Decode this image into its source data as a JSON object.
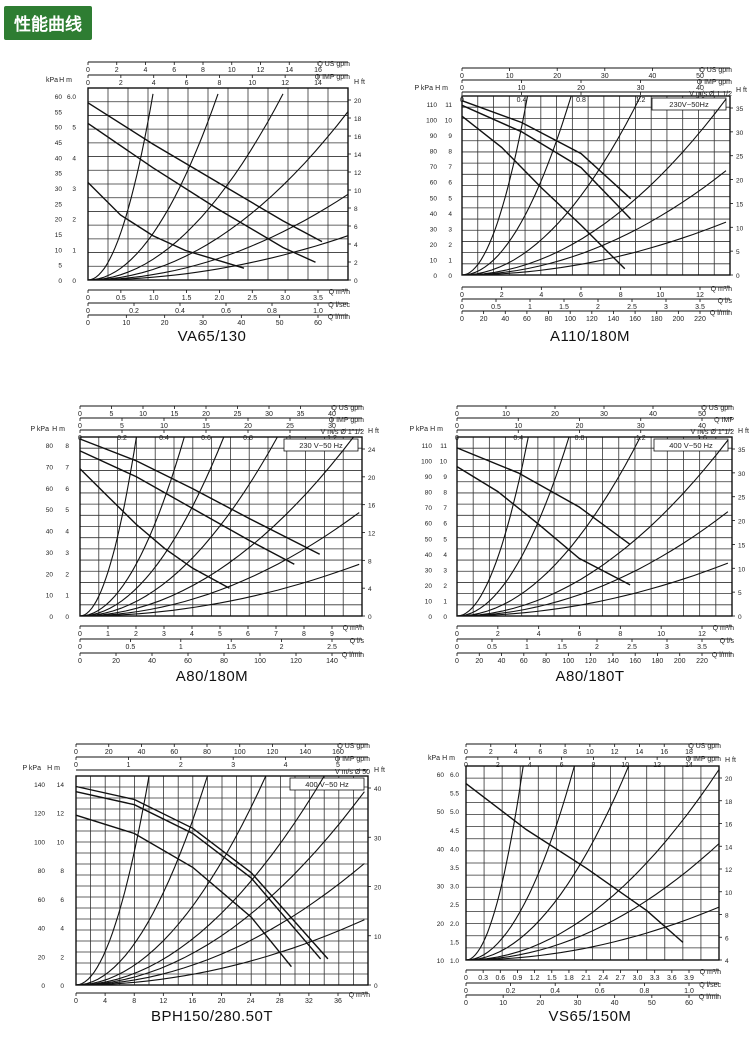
{
  "header": {
    "title": "性能曲线"
  },
  "chart_data": [
    {
      "type": "line",
      "title": "VA65/130",
      "top_axes": [
        {
          "label": "Q US gpm",
          "ticks": [
            "0",
            "2",
            "4",
            "6",
            "8",
            "10",
            "12",
            "14",
            "16"
          ]
        },
        {
          "label": "Q IMP gpm",
          "ticks": [
            "0",
            "2",
            "4",
            "6",
            "8",
            "10",
            "12",
            "14"
          ]
        }
      ],
      "left_axes": [
        {
          "label": "kPa",
          "ticks": [
            "0",
            "5",
            "10",
            "15",
            "20",
            "25",
            "30",
            "35",
            "40",
            "45",
            "50",
            "55",
            "60"
          ]
        },
        {
          "label": "H m",
          "ticks": [
            "0",
            "1",
            "2",
            "3",
            "4",
            "5",
            "6.0"
          ]
        }
      ],
      "right_axes": [
        {
          "label": "H ft",
          "ticks": [
            "0",
            "2",
            "4",
            "6",
            "8",
            "10",
            "12",
            "14",
            "16",
            "18",
            "20"
          ]
        }
      ],
      "bottom_axes": [
        {
          "label": "Q m³/h",
          "ticks": [
            "0",
            "0.5",
            "1.0",
            "1.5",
            "2.0",
            "2.5",
            "3.0",
            "3.5"
          ]
        },
        {
          "label": "Q l/sec",
          "ticks": [
            "0",
            "0.2",
            "0.4",
            "0.6",
            "0.8",
            "1.0"
          ]
        },
        {
          "label": "Q l/min",
          "ticks": [
            "0",
            "10",
            "20",
            "30",
            "40",
            "50",
            "60"
          ]
        }
      ],
      "x_range": [
        0,
        4
      ],
      "y_range": [
        0,
        6.5
      ],
      "pump_curves": [
        {
          "x": [
            0,
            1,
            2,
            3,
            3.6
          ],
          "y": [
            6.0,
            4.6,
            3.3,
            2.0,
            1.3
          ]
        },
        {
          "x": [
            0,
            1,
            2,
            3,
            3.5
          ],
          "y": [
            5.3,
            3.8,
            2.4,
            1.1,
            0.6
          ]
        },
        {
          "x": [
            0,
            0.5,
            1,
            1.5,
            2.4
          ],
          "y": [
            3.3,
            2.2,
            1.5,
            1.0,
            0.4
          ]
        }
      ],
      "system_curve_ends": [
        [
          1,
          6.3
        ],
        [
          2,
          6.3
        ],
        [
          3,
          6.3
        ],
        [
          4,
          5.7
        ],
        [
          4,
          2.9
        ],
        [
          4,
          1.5
        ]
      ]
    },
    {
      "type": "line",
      "title": "A110/180M",
      "top_axes": [
        {
          "label": "Q US gpm",
          "ticks": [
            "0",
            "10",
            "20",
            "30",
            "40",
            "50"
          ]
        },
        {
          "label": "Q IMP gpm",
          "ticks": [
            "0",
            "10",
            "20",
            "30",
            "40"
          ]
        },
        {
          "label": "V m/s Ø 1 1/2",
          "ticks": [
            "0",
            "0.4",
            "0.8",
            "1.2",
            "1.6"
          ]
        }
      ],
      "left_axes": [
        {
          "label": "P kPa",
          "ticks": [
            "0",
            "10",
            "20",
            "30",
            "40",
            "50",
            "60",
            "70",
            "80",
            "90",
            "100",
            "110"
          ]
        },
        {
          "label": "H m",
          "ticks": [
            "0",
            "1",
            "2",
            "3",
            "4",
            "5",
            "6",
            "7",
            "8",
            "9",
            "10",
            "11"
          ]
        }
      ],
      "right_axes": [
        {
          "label": "H ft",
          "ticks": [
            "0",
            "5",
            "10",
            "15",
            "20",
            "25",
            "30",
            "35"
          ]
        }
      ],
      "bottom_axes": [
        {
          "label": "Q m³/h",
          "ticks": [
            "0",
            "2",
            "4",
            "6",
            "8",
            "10",
            "12"
          ]
        },
        {
          "label": "Q l/s",
          "ticks": [
            "0",
            "0.5",
            "1",
            "1.5",
            "2",
            "2.5",
            "3",
            "3.5"
          ]
        },
        {
          "label": "Q l/min",
          "ticks": [
            "0",
            "20",
            "40",
            "60",
            "80",
            "100",
            "120",
            "140",
            "160",
            "180",
            "200",
            "220"
          ]
        }
      ],
      "x_range": [
        0,
        13.5
      ],
      "y_range": [
        0,
        11.5
      ],
      "label": "230V~50Hz",
      "pump_curves": [
        {
          "x": [
            0,
            3,
            6,
            8.5
          ],
          "y": [
            11.2,
            9.8,
            7.8,
            4.9
          ]
        },
        {
          "x": [
            0,
            3,
            6,
            8.5
          ],
          "y": [
            10.9,
            9.2,
            6.9,
            3.6
          ]
        },
        {
          "x": [
            0,
            2,
            4,
            6,
            8.2
          ],
          "y": [
            10.2,
            8.2,
            5.6,
            3.2,
            0.4
          ]
        }
      ],
      "system_curve_ends": [
        [
          3.3,
          11.5
        ],
        [
          5.5,
          11.5
        ],
        [
          9,
          11.5
        ],
        [
          13.3,
          11.3
        ],
        [
          13.3,
          6.7
        ],
        [
          13.3,
          3.4
        ]
      ]
    },
    {
      "type": "line",
      "title": "A80/180M",
      "top_axes": [
        {
          "label": "Q US gpm",
          "ticks": [
            "0",
            "5",
            "10",
            "15",
            "20",
            "25",
            "30",
            "35",
            "40"
          ]
        },
        {
          "label": "Q IMP gpm",
          "ticks": [
            "0",
            "5",
            "10",
            "15",
            "20",
            "25",
            "30"
          ]
        },
        {
          "label": "V m/s Ø 1\"1/2",
          "ticks": [
            "0",
            "0.2",
            "0.4",
            "0.6",
            "0.8",
            "1",
            "1.2"
          ]
        }
      ],
      "left_axes": [
        {
          "label": "P kPa",
          "ticks": [
            "0",
            "10",
            "20",
            "30",
            "40",
            "50",
            "60",
            "70",
            "80"
          ]
        },
        {
          "label": "H m",
          "ticks": [
            "0",
            "1",
            "2",
            "3",
            "4",
            "5",
            "6",
            "7",
            "8"
          ]
        }
      ],
      "right_axes": [
        {
          "label": "H ft",
          "ticks": [
            "0",
            "4",
            "8",
            "12",
            "16",
            "20",
            "24"
          ]
        }
      ],
      "bottom_axes": [
        {
          "label": "Q m³/h",
          "ticks": [
            "0",
            "1",
            "2",
            "3",
            "4",
            "5",
            "6",
            "7",
            "8",
            "9"
          ]
        },
        {
          "label": "Q l/s",
          "ticks": [
            "0",
            "0.5",
            "1",
            "1.5",
            "2",
            "2.5"
          ]
        },
        {
          "label": "Q l/min",
          "ticks": [
            "0",
            "20",
            "40",
            "60",
            "80",
            "100",
            "120",
            "140"
          ]
        }
      ],
      "x_range": [
        0,
        10
      ],
      "y_range": [
        0,
        9
      ],
      "label": "230 V~50 Hz",
      "pump_curves": [
        {
          "x": [
            0,
            2,
            4,
            6,
            8.5
          ],
          "y": [
            8.9,
            7.8,
            6.4,
            4.9,
            3.1
          ]
        },
        {
          "x": [
            0,
            2,
            4,
            6,
            7.6
          ],
          "y": [
            8.3,
            7.0,
            5.4,
            3.8,
            2.6
          ]
        },
        {
          "x": [
            0,
            1,
            2,
            3,
            4,
            5.3
          ],
          "y": [
            7.4,
            6.0,
            4.6,
            3.4,
            2.4,
            1.4
          ]
        }
      ],
      "system_curve_ends": [
        [
          2,
          9
        ],
        [
          3.7,
          9
        ],
        [
          5.1,
          9
        ],
        [
          7,
          9
        ],
        [
          9.7,
          9
        ],
        [
          9.9,
          5.2
        ],
        [
          9.9,
          2.6
        ]
      ]
    },
    {
      "type": "line",
      "title": "A80/180T",
      "top_axes": [
        {
          "label": "Q US gpm",
          "ticks": [
            "0",
            "10",
            "20",
            "30",
            "40",
            "50"
          ]
        },
        {
          "label": "Q IMP",
          "ticks": [
            "0",
            "10",
            "20",
            "30",
            "40"
          ]
        },
        {
          "label": "V m/s Ø 1\"1/2",
          "ticks": [
            "0",
            "0.4",
            "0.8",
            "1.2",
            "1.6"
          ]
        }
      ],
      "left_axes": [
        {
          "label": "P kPa",
          "ticks": [
            "0",
            "10",
            "20",
            "30",
            "40",
            "50",
            "60",
            "70",
            "80",
            "90",
            "100",
            "110"
          ]
        },
        {
          "label": "H m",
          "ticks": [
            "0",
            "1",
            "2",
            "3",
            "4",
            "5",
            "6",
            "7",
            "8",
            "9",
            "10",
            "11"
          ]
        }
      ],
      "right_axes": [
        {
          "label": "H ft",
          "ticks": [
            "0",
            "5",
            "10",
            "15",
            "20",
            "25",
            "30",
            "35"
          ]
        }
      ],
      "bottom_axes": [
        {
          "label": "Q m³/h",
          "ticks": [
            "0",
            "2",
            "4",
            "6",
            "8",
            "10",
            "12"
          ]
        },
        {
          "label": "Q l/s",
          "ticks": [
            "0",
            "0.5",
            "1",
            "1.5",
            "2",
            "2.5",
            "3",
            "3.5"
          ]
        },
        {
          "label": "Q l/min",
          "ticks": [
            "0",
            "20",
            "40",
            "60",
            "80",
            "100",
            "120",
            "140",
            "160",
            "180",
            "200",
            "220"
          ]
        }
      ],
      "x_range": [
        0,
        13.5
      ],
      "y_range": [
        0,
        11.5
      ],
      "label": "400 V~50 Hz",
      "pump_curves": [
        {
          "x": [
            0,
            3,
            6,
            8.5
          ],
          "y": [
            10.8,
            9.2,
            7.0,
            4.6
          ]
        },
        {
          "x": [
            0,
            2,
            4,
            6,
            8.5
          ],
          "y": [
            9.6,
            8.0,
            5.9,
            3.7,
            2.0
          ]
        }
      ],
      "system_curve_ends": [
        [
          3.5,
          11.5
        ],
        [
          5.5,
          11.5
        ],
        [
          9,
          11.5
        ],
        [
          13.3,
          11.3
        ],
        [
          13.3,
          6.7
        ],
        [
          13.3,
          3.4
        ]
      ]
    },
    {
      "type": "line",
      "title": "BPH150/280.50T",
      "top_axes": [
        {
          "label": "Q US gpm",
          "ticks": [
            "0",
            "20",
            "40",
            "60",
            "80",
            "100",
            "120",
            "140",
            "160"
          ]
        },
        {
          "label": "Q IMP gpm",
          "ticks": [
            "0",
            "1",
            "2",
            "3",
            "4",
            "5"
          ]
        },
        {
          "label": "V m/s Ø 50",
          "ticks": []
        }
      ],
      "left_axes": [
        {
          "label": "P kPa",
          "ticks": [
            "0",
            "20",
            "40",
            "60",
            "80",
            "100",
            "120",
            "140"
          ]
        },
        {
          "label": "H m",
          "ticks": [
            "0",
            "2",
            "4",
            "6",
            "8",
            "10",
            "12",
            "14"
          ]
        }
      ],
      "right_axes": [
        {
          "label": "H ft",
          "ticks": [
            "0",
            "10",
            "20",
            "30",
            "40"
          ]
        }
      ],
      "bottom_axes": [
        {
          "label": "Q m³/h",
          "ticks": [
            "0",
            "4",
            "8",
            "12",
            "16",
            "20",
            "24",
            "28",
            "32",
            "36"
          ]
        }
      ],
      "x_range": [
        0,
        40
      ],
      "y_range": [
        0,
        16
      ],
      "label": "400 V~50 Hz",
      "pump_curves": [
        {
          "x": [
            0,
            8,
            16,
            24,
            34.5
          ],
          "y": [
            15.2,
            14.2,
            12.0,
            8.6,
            2.0
          ]
        },
        {
          "x": [
            0,
            8,
            16,
            24,
            33.5
          ],
          "y": [
            14.8,
            13.8,
            11.6,
            8.2,
            2.0
          ]
        },
        {
          "x": [
            0,
            8,
            16,
            24,
            29.5
          ],
          "y": [
            13.0,
            11.6,
            9.0,
            5.2,
            1.4
          ]
        }
      ],
      "system_curve_ends": [
        [
          10,
          16
        ],
        [
          18,
          16
        ],
        [
          26,
          16
        ],
        [
          34,
          16
        ],
        [
          39.5,
          14.8
        ],
        [
          39.5,
          9.3
        ],
        [
          39.5,
          5
        ]
      ]
    },
    {
      "type": "line",
      "title": "VS65/150M",
      "top_axes": [
        {
          "label": "Q US gpm",
          "ticks": [
            "0",
            "2",
            "4",
            "6",
            "8",
            "10",
            "12",
            "14",
            "16",
            "18"
          ]
        },
        {
          "label": "Q IMP gpm",
          "ticks": [
            "0",
            "2",
            "4",
            "6",
            "8",
            "10",
            "12",
            "14"
          ]
        }
      ],
      "left_axes": [
        {
          "label": "kPa",
          "ticks": [
            "10",
            "20",
            "30",
            "40",
            "50",
            "60"
          ]
        },
        {
          "label": "H m",
          "ticks": [
            "1.0",
            "1.5",
            "2.0",
            "2.5",
            "3.0",
            "3.5",
            "4.0",
            "4.5",
            "5.0",
            "5.5",
            "6.0"
          ]
        }
      ],
      "right_axes": [
        {
          "label": "H ft",
          "ticks": [
            "4",
            "6",
            "8",
            "10",
            "12",
            "14",
            "16",
            "18",
            "20"
          ]
        }
      ],
      "bottom_axes": [
        {
          "label": "Q m³/h",
          "ticks": [
            "0",
            "0.3",
            "0.6",
            "0.9",
            "1.2",
            "1.5",
            "1.8",
            "2.1",
            "2.4",
            "2.7",
            "3.0",
            "3.3",
            "3.6",
            "3.9"
          ]
        },
        {
          "label": "Q l/sec",
          "ticks": [
            "0",
            "0.2",
            "0.4",
            "0.6",
            "0.8",
            "1.0"
          ]
        },
        {
          "label": "Q l/min",
          "ticks": [
            "0",
            "10",
            "20",
            "30",
            "40",
            "50",
            "60"
          ]
        }
      ],
      "x_range": [
        0,
        4.2
      ],
      "y_range": [
        1,
        6.5
      ],
      "pump_curves": [
        {
          "x": [
            0,
            1,
            2,
            3,
            3.6
          ],
          "y": [
            6.0,
            4.7,
            3.6,
            2.4,
            1.5
          ]
        }
      ],
      "system_curve_ends": [
        [
          0.95,
          6.5
        ],
        [
          1.8,
          6.5
        ],
        [
          2.7,
          6.5
        ],
        [
          4.2,
          6.4
        ],
        [
          4.2,
          4.3
        ],
        [
          4.2,
          2.5
        ]
      ]
    }
  ]
}
